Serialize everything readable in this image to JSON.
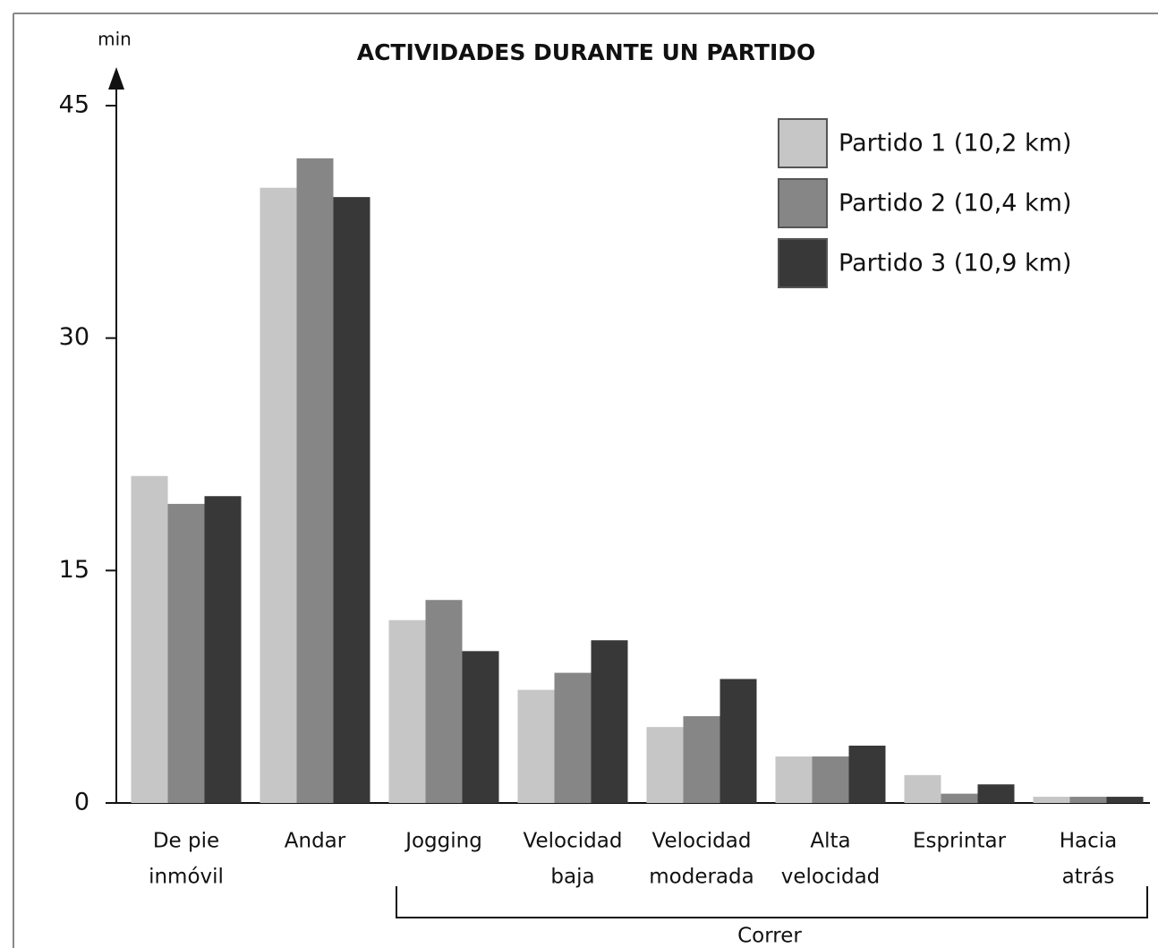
{
  "chart_data": {
    "type": "bar",
    "title": "ACTIVIDADES DURANTE UN PARTIDO",
    "y_label": "min",
    "annotation": "Correr",
    "categories": [
      [
        "De pie",
        "inmóvil"
      ],
      [
        "Andar"
      ],
      [
        "Jogging"
      ],
      [
        "Velocidad",
        "baja"
      ],
      [
        "Velocidad",
        "moderada"
      ],
      [
        "Alta",
        "velocidad"
      ],
      [
        "Esprintar"
      ],
      [
        "Hacia",
        "atrás"
      ]
    ],
    "series": [
      {
        "name": "Partido 1 (10,2 km)",
        "color": "#c6c6c6",
        "values": [
          21.1,
          39.7,
          11.8,
          7.3,
          4.9,
          3.0,
          1.8,
          0.4
        ]
      },
      {
        "name": "Partido 2 (10,4 km)",
        "color": "#868686",
        "values": [
          19.3,
          41.6,
          13.1,
          8.4,
          5.6,
          3.0,
          0.6,
          0.4
        ]
      },
      {
        "name": "Partido 3 (10,9 km)",
        "color": "#383838",
        "values": [
          19.8,
          39.1,
          9.8,
          10.5,
          8.0,
          3.7,
          1.2,
          0.4
        ]
      }
    ],
    "ylim": [
      0,
      45
    ],
    "yticks": [
      0,
      15,
      30,
      45
    ],
    "grid": false,
    "legend": "top-right"
  }
}
